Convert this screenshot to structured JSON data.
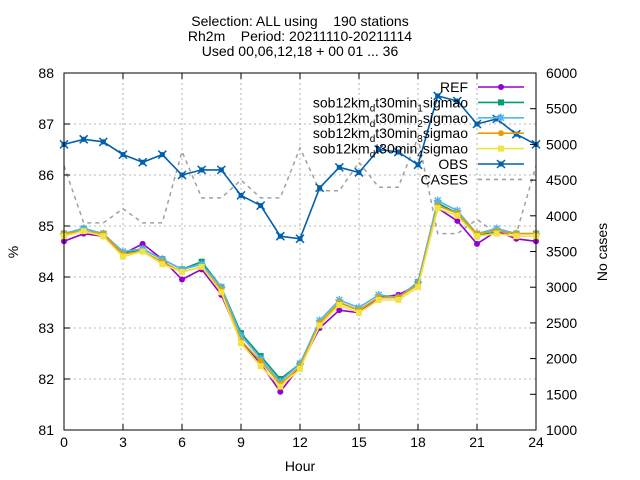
{
  "chart_data": {
    "type": "line",
    "title_lines": [
      "Selection: ALL using    190 stations",
      "Rh2m    Period: 20211110-20211114",
      "Used 00,06,12,18 + 00 01 ... 36"
    ],
    "xlabel": "Hour",
    "ylabel": "%",
    "y2label": "No cases",
    "xlim": [
      0,
      24
    ],
    "ylim": [
      81,
      88
    ],
    "y2lim": [
      1000,
      6000
    ],
    "xticks": [
      0,
      3,
      6,
      9,
      12,
      15,
      18,
      21,
      24
    ],
    "yticks": [
      81,
      82,
      83,
      84,
      85,
      86,
      87,
      88
    ],
    "y2ticks": [
      1000,
      1500,
      2000,
      2500,
      3000,
      3500,
      4000,
      4500,
      5000,
      5500,
      6000
    ],
    "grid": true,
    "legend_position": "top-right",
    "x": [
      0,
      1,
      2,
      3,
      4,
      5,
      6,
      7,
      8,
      9,
      10,
      11,
      12,
      13,
      14,
      15,
      16,
      17,
      18,
      19,
      20,
      21,
      22,
      23,
      24
    ],
    "series": [
      {
        "name": "REF",
        "color": "#9400d3",
        "marker": "circle",
        "values": [
          84.7,
          84.85,
          84.8,
          84.45,
          84.65,
          84.35,
          83.95,
          84.15,
          83.65,
          82.75,
          82.3,
          81.75,
          82.25,
          83.0,
          83.35,
          83.3,
          83.6,
          83.65,
          83.85,
          85.35,
          85.1,
          84.65,
          84.9,
          84.75,
          84.7
        ]
      },
      {
        "name": "sob12km_d t30min_1 sigmao",
        "label_parts": [
          [
            "sob12km",
            ""
          ],
          [
            "d",
            "sub"
          ],
          [
            "t30min",
            ""
          ],
          [
            "1",
            "sub"
          ],
          [
            "sigmao",
            ""
          ]
        ],
        "color": "#009e73",
        "marker": "square",
        "values": [
          84.85,
          84.95,
          84.85,
          84.45,
          84.55,
          84.35,
          84.15,
          84.3,
          83.8,
          82.9,
          82.45,
          82.0,
          82.3,
          83.1,
          83.5,
          83.35,
          83.6,
          83.6,
          83.9,
          85.45,
          85.25,
          84.8,
          84.9,
          84.85,
          84.85
        ]
      },
      {
        "name": "sob12km_d t30min_2 sigmao",
        "label_parts": [
          [
            "sob12km",
            ""
          ],
          [
            "d",
            "sub"
          ],
          [
            "t30min",
            ""
          ],
          [
            "2",
            "sub"
          ],
          [
            "sigmao",
            ""
          ]
        ],
        "color": "#56b4e9",
        "marker": "star",
        "values": [
          84.85,
          84.95,
          84.85,
          84.5,
          84.55,
          84.35,
          84.15,
          84.25,
          83.8,
          82.85,
          82.4,
          81.95,
          82.3,
          83.15,
          83.55,
          83.4,
          83.65,
          83.6,
          83.9,
          85.5,
          85.3,
          84.85,
          84.95,
          84.85,
          84.85
        ]
      },
      {
        "name": "sob12km_d t30min_3 sigmao",
        "label_parts": [
          [
            "sob12km",
            ""
          ],
          [
            "d",
            "sub"
          ],
          [
            "t30min",
            ""
          ],
          [
            "3",
            "sub"
          ],
          [
            "sigmao",
            ""
          ]
        ],
        "color": "#e69f00",
        "marker": "circle",
        "values": [
          84.85,
          84.9,
          84.85,
          84.45,
          84.5,
          84.3,
          84.1,
          84.2,
          83.75,
          82.75,
          82.35,
          81.9,
          82.25,
          83.1,
          83.5,
          83.35,
          83.6,
          83.6,
          83.85,
          85.4,
          85.25,
          84.85,
          84.9,
          84.85,
          84.85
        ]
      },
      {
        "name": "sob12km_d t30min_4 sigmao",
        "label_parts": [
          [
            "sob12km",
            ""
          ],
          [
            "d",
            "sub"
          ],
          [
            "t30min",
            ""
          ],
          [
            "4",
            "sub"
          ],
          [
            "sigmao",
            ""
          ]
        ],
        "color": "#f0e442",
        "marker": "square",
        "values": [
          84.8,
          84.9,
          84.8,
          84.4,
          84.5,
          84.25,
          84.1,
          84.2,
          83.7,
          82.7,
          82.25,
          81.85,
          82.2,
          83.05,
          83.45,
          83.3,
          83.55,
          83.55,
          83.8,
          85.35,
          85.2,
          84.8,
          84.85,
          84.8,
          84.8
        ]
      },
      {
        "name": "OBS",
        "color": "#0060ad",
        "marker": "cross",
        "values": [
          86.6,
          86.7,
          86.65,
          86.4,
          86.25,
          86.4,
          86.0,
          86.1,
          86.1,
          85.6,
          85.4,
          84.8,
          84.75,
          85.75,
          86.15,
          86.05,
          86.5,
          86.45,
          86.2,
          87.55,
          87.45,
          87.0,
          87.1,
          86.8,
          86.6
        ]
      },
      {
        "name": "CASES",
        "color": "#a0a0a0",
        "dashed": true,
        "axis": "y2",
        "values": [
          4700,
          3900,
          3900,
          4100,
          3900,
          3900,
          4900,
          4250,
          4250,
          4500,
          4250,
          4250,
          4950,
          4350,
          4350,
          4750,
          4400,
          4400,
          5100,
          3750,
          3750,
          3950,
          3750,
          3750,
          4700
        ]
      }
    ]
  }
}
